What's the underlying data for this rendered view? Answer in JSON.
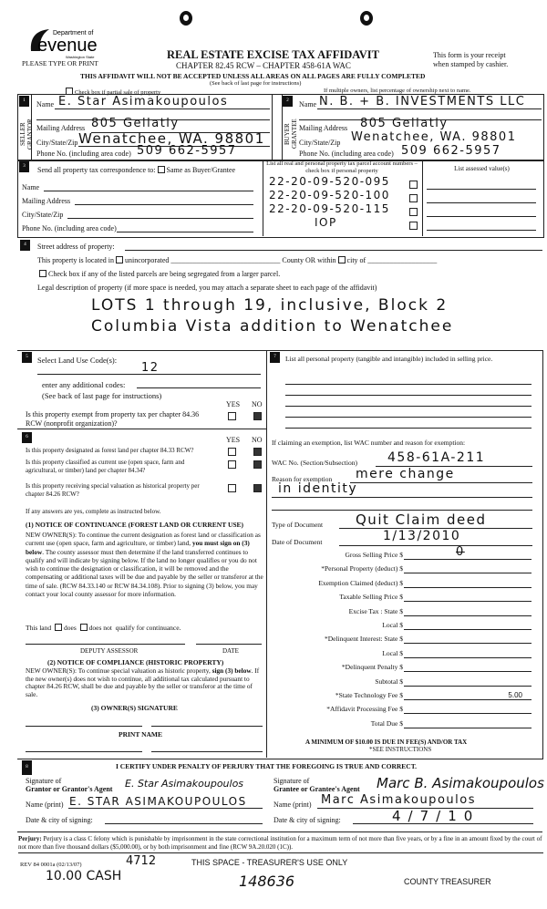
{
  "header": {
    "logo_dept": "Department of",
    "logo_name": "Revenue",
    "logo_state": "Washington State",
    "please": "PLEASE TYPE OR PRINT",
    "title": "REAL ESTATE EXCISE TAX AFFIDAVIT",
    "chapter": "CHAPTER 82.45 RCW – CHAPTER 458-61A WAC",
    "warning": "THIS AFFIDAVIT WILL NOT BE ACCEPTED UNLESS ALL AREAS ON ALL PAGES ARE FULLY COMPLETED",
    "see_back": "(See back of last page for instructions)",
    "receipt_1": "This form is your receipt",
    "receipt_2": "when stamped by cashier.",
    "partial_sale": "Check box if partial sale of property",
    "multiple_owners": "If multiple owners, list percentage of ownership next to name."
  },
  "seller": {
    "num": "1",
    "side_label": "SELLER GRANTOR",
    "name_label": "Name",
    "name": "E. Star Asimakoupoulos",
    "address_label": "Mailing Address",
    "address": "805 Gellatly",
    "city_label": "City/State/Zip",
    "city": "Wenatchee, WA. 98801",
    "phone_label": "Phone No. (including area code)",
    "phone": "509 662-5957"
  },
  "buyer": {
    "num": "2",
    "side_label": "BUYER GRANTEE",
    "name_label": "Name",
    "name": "N. B. + B. INVESTMENTS LLC",
    "address_label": "Mailing Address",
    "address": "805 Gellatly",
    "city_label": "City/State/Zip",
    "city": "Wenatchee, WA. 98801",
    "phone_label": "Phone No. (including area code)",
    "phone": "509 662-5957"
  },
  "section3": {
    "num": "3",
    "send_label": "Send all property tax correspondence to:",
    "same_as": "Same as Buyer/Grantee",
    "name_label": "Name",
    "address_label": "Mailing Address",
    "city_label": "City/State/Zip",
    "phone_label": "Phone No. (including area code)",
    "parcels_header": "List all real and personal property tax parcel account numbers – check box if personal property",
    "assessed_header": "List assessed value(s)",
    "parcels": [
      "22-20-09-520-095",
      "22-20-09-520-100",
      "22-20-09-520-115",
      "IOP"
    ]
  },
  "section4": {
    "num": "4",
    "street_label": "Street address of property:",
    "located_label": "This property is located in",
    "unincorporated": "unincorporated",
    "county_or": "County OR within",
    "city_of": "city of",
    "segregated": "Check box if any of the listed parcels are being segregated from a larger parcel.",
    "legal_label": "Legal description of property (if more space is needed, you may attach a separate sheet to each page of the affidavit)",
    "legal_line1": "LOTS 1 through 19, inclusive, Block 2",
    "legal_line2": "Columbia Vista addition to Wenatchee"
  },
  "section5": {
    "num": "5",
    "label": "Select Land Use Code(s):",
    "code": "12",
    "additional": "enter any additional codes:",
    "see_back": "(See back of last page for instructions)",
    "yes": "YES",
    "no": "NO",
    "exempt_q": "Is this property exempt from property tax per chapter 84.36 RCW (nonprofit organization)?",
    "exempt_answer": "NO"
  },
  "section6": {
    "num": "6",
    "yes": "YES",
    "no": "NO",
    "questions": [
      {
        "q": "Is this property designated as forest land per chapter 84.33 RCW?",
        "answer": "NO"
      },
      {
        "q": "Is this property classified as current use (open space, farm and agricultural, or timber) land per chapter 84.34?",
        "answer": "NO"
      },
      {
        "q": "Is this property receiving special valuation as historical property per chapter 84.26 RCW?",
        "answer": "NO"
      }
    ],
    "if_yes": "If any answers are yes, complete as instructed below.",
    "notice1_title": "(1) NOTICE OF CONTINUANCE (FOREST LAND OR CURRENT USE)",
    "notice1_a": "NEW OWNER(S): To continue the current designation as forest land or classification as current use (open space, farm and agriculture, or timber) land,",
    "notice1_bold": "you must sign on (3) below",
    "notice1_b": ". The county assessor must then determine if the land transferred continues to qualify and will indicate by signing below. If the land no longer qualifies or you do not wish to continue the designation or classification, it will be removed and the compensating or additional taxes will be due and payable by the seller or transferor at the time of sale. (RCW 84.33.140 or RCW 84.34.108). Prior to signing (3) below, you may contact your local county assessor for more information.",
    "this_land": "This land",
    "does": "does",
    "does_not": "does not",
    "qualify": "qualify for continuance.",
    "deputy": "DEPUTY ASSESSOR",
    "date": "DATE",
    "notice2_title": "(2) NOTICE OF COMPLIANCE (HISTORIC PROPERTY)",
    "notice2_a": "NEW OWNER(S): To continue special valuation as historic property,",
    "notice2_bold": "sign (3) below",
    "notice2_b": ". If the new owner(s) does not wish to continue, all additional tax calculated pursuant to chapter 84.26 RCW, shall be due and payable by the seller or transferor at the time of sale.",
    "owner_sig": "(3) OWNER(S) SIGNATURE",
    "print_name": "PRINT NAME"
  },
  "section7": {
    "num": "7",
    "personal_label": "List all personal property (tangible and intangible) included in selling price.",
    "exemption_label": "If claiming an exemption, list WAC number and reason for exemption:",
    "wac_label": "WAC No. (Section/Subsection)",
    "wac": "458-61A-211",
    "reason_label": "Reason for exemption",
    "reason_1": "mere change",
    "reason_2": "in identity",
    "doc_type_label": "Type of Document",
    "doc_type": "Quit Claim deed",
    "doc_date_label": "Date of Document",
    "doc_date": "1/13/2010",
    "fees": [
      {
        "label": "Gross Selling Price $",
        "value": "0"
      },
      {
        "label": "*Personal Property (deduct) $",
        "value": ""
      },
      {
        "label": "Exemption Claimed (deduct) $",
        "value": ""
      },
      {
        "label": "Taxable Selling Price $",
        "value": ""
      },
      {
        "label": "Excise Tax : State $",
        "value": ""
      },
      {
        "label": "Local $",
        "value": ""
      },
      {
        "label": "*Delinquent Interest: State $",
        "value": ""
      },
      {
        "label": "Local $",
        "value": ""
      },
      {
        "label": "*Delinquent Penalty $",
        "value": ""
      },
      {
        "label": "Subtotal $",
        "value": ""
      },
      {
        "label": "*State Technology Fee $",
        "value": "5.00"
      },
      {
        "label": "*Affidavit Processing Fee $",
        "value": ""
      },
      {
        "label": "Total Due $",
        "value": ""
      }
    ],
    "minimum": "A MINIMUM OF $10.00 IS DUE IN FEE(S) AND/OR TAX",
    "see_instr": "*SEE INSTRUCTIONS"
  },
  "section8": {
    "num": "8",
    "certify": "I CERTIFY UNDER PENALTY OF PERJURY THAT THE FOREGOING IS TRUE AND CORRECT.",
    "sig_of": "Signature of",
    "grantor_agent": "Grantor or Grantor's Agent",
    "grantor_sig": "E. Star Asimakoupoulos",
    "grantee_agent": "Grantee or Grantee's Agent",
    "grantee_sig": "Marc B. Asimakoupoulos",
    "name_print_label": "Name (print)",
    "grantor_print": "E. STAR ASIMAKOUPOULOS",
    "grantee_print": "Marc Asimakoupoulos",
    "date_city_label": "Date & city of signing:",
    "grantor_date": "",
    "grantee_date": "4/7/10"
  },
  "footer": {
    "perjury_bold": "Perjury:",
    "perjury": "Perjury is a class C felony which is punishable by imprisonment in the state correctional institution for a maximum term of not more than five years, or by a fine in an amount fixed by the court of not more than five thousand dollars ($5,000.00), or by both imprisonment and fine (RCW 9A.20.020 (1C)).",
    "rev": "REV 84 0001a (02/13/07)",
    "handwritten_num": "4712",
    "treasurer_use": "THIS SPACE - TREASURER'S USE ONLY",
    "cash": "10.00 CASH",
    "receipt_num": "148636",
    "county_treasurer": "COUNTY TREASURER"
  }
}
